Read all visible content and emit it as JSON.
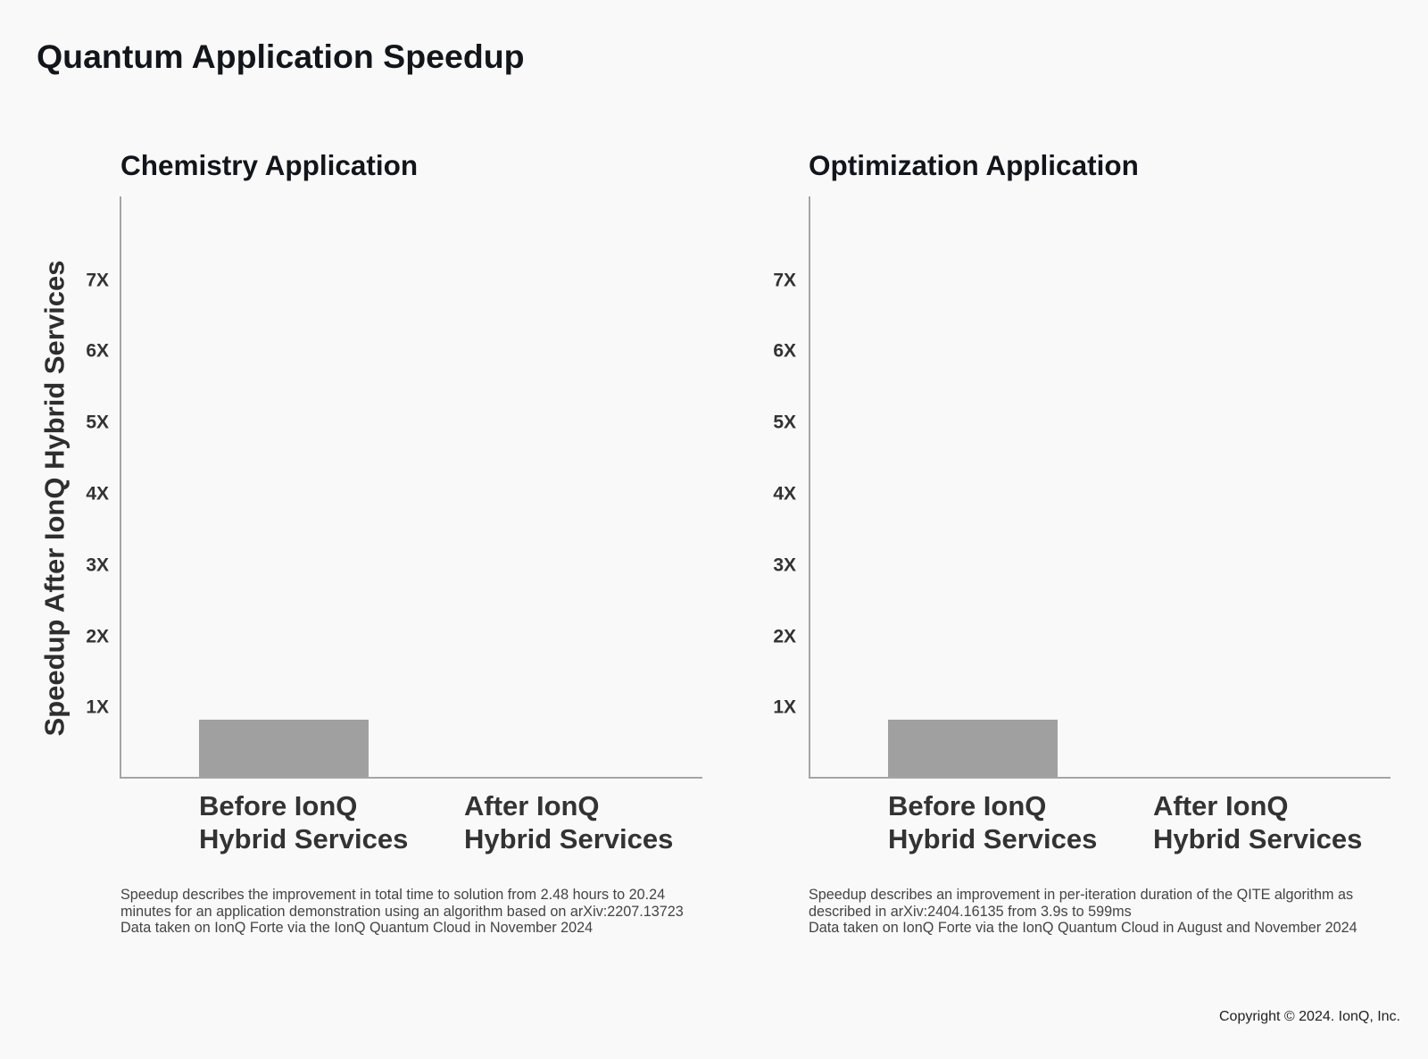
{
  "page": {
    "title": "Quantum Application Speedup"
  },
  "footer": {
    "copyright": "Copyright © 2024. IonQ, Inc."
  },
  "colors": {
    "background": "#f9f9f9",
    "title": "#12161b",
    "label": "#333333",
    "axis": "#a5a5a5",
    "bar": "#a0a0a1"
  },
  "chart_data": [
    {
      "type": "bar",
      "title": "Chemistry Application",
      "xlabel": "",
      "ylabel": "Speedup After IonQ Hybrid Services",
      "categories": [
        "Before IonQ Hybrid Services",
        "After IonQ Hybrid Services"
      ],
      "category_label_lines": [
        [
          "Before IonQ",
          "Hybrid Services"
        ],
        [
          "After IonQ",
          "Hybrid Services"
        ]
      ],
      "values": [
        0.8,
        0
      ],
      "y_ticks": [
        1,
        2,
        3,
        4,
        5,
        6,
        7
      ],
      "y_tick_labels": [
        "1X",
        "2X",
        "3X",
        "4X",
        "5X",
        "6X",
        "7X"
      ],
      "ylim": [
        0,
        8.15
      ],
      "grid": false,
      "legend": null,
      "bar_color": "#a0a0a1",
      "footnote_lines": [
        "Speedup describes the improvement in total time to solution from 2.48 hours to 20.24",
        "minutes for an application demonstration using an algorithm based on arXiv:2207.13723",
        "Data taken on IonQ Forte via the IonQ Quantum Cloud in November 2024"
      ]
    },
    {
      "type": "bar",
      "title": "Optimization Application",
      "xlabel": "",
      "ylabel": "Speedup After IonQ Hybrid Services",
      "categories": [
        "Before IonQ Hybrid Services",
        "After IonQ Hybrid Services"
      ],
      "category_label_lines": [
        [
          "Before IonQ",
          "Hybrid Services"
        ],
        [
          "After IonQ",
          "Hybrid Services"
        ]
      ],
      "values": [
        0.8,
        0
      ],
      "y_ticks": [
        1,
        2,
        3,
        4,
        5,
        6,
        7
      ],
      "y_tick_labels": [
        "1X",
        "2X",
        "3X",
        "4X",
        "5X",
        "6X",
        "7X"
      ],
      "ylim": [
        0,
        8.15
      ],
      "grid": false,
      "legend": null,
      "bar_color": "#a0a0a1",
      "footnote_lines": [
        "Speedup describes an improvement in per-iteration duration of the QITE algorithm as",
        "described in arXiv:2404.16135 from 3.9s to 599ms",
        "Data taken on IonQ Forte via the IonQ Quantum Cloud in August and November 2024"
      ]
    }
  ]
}
